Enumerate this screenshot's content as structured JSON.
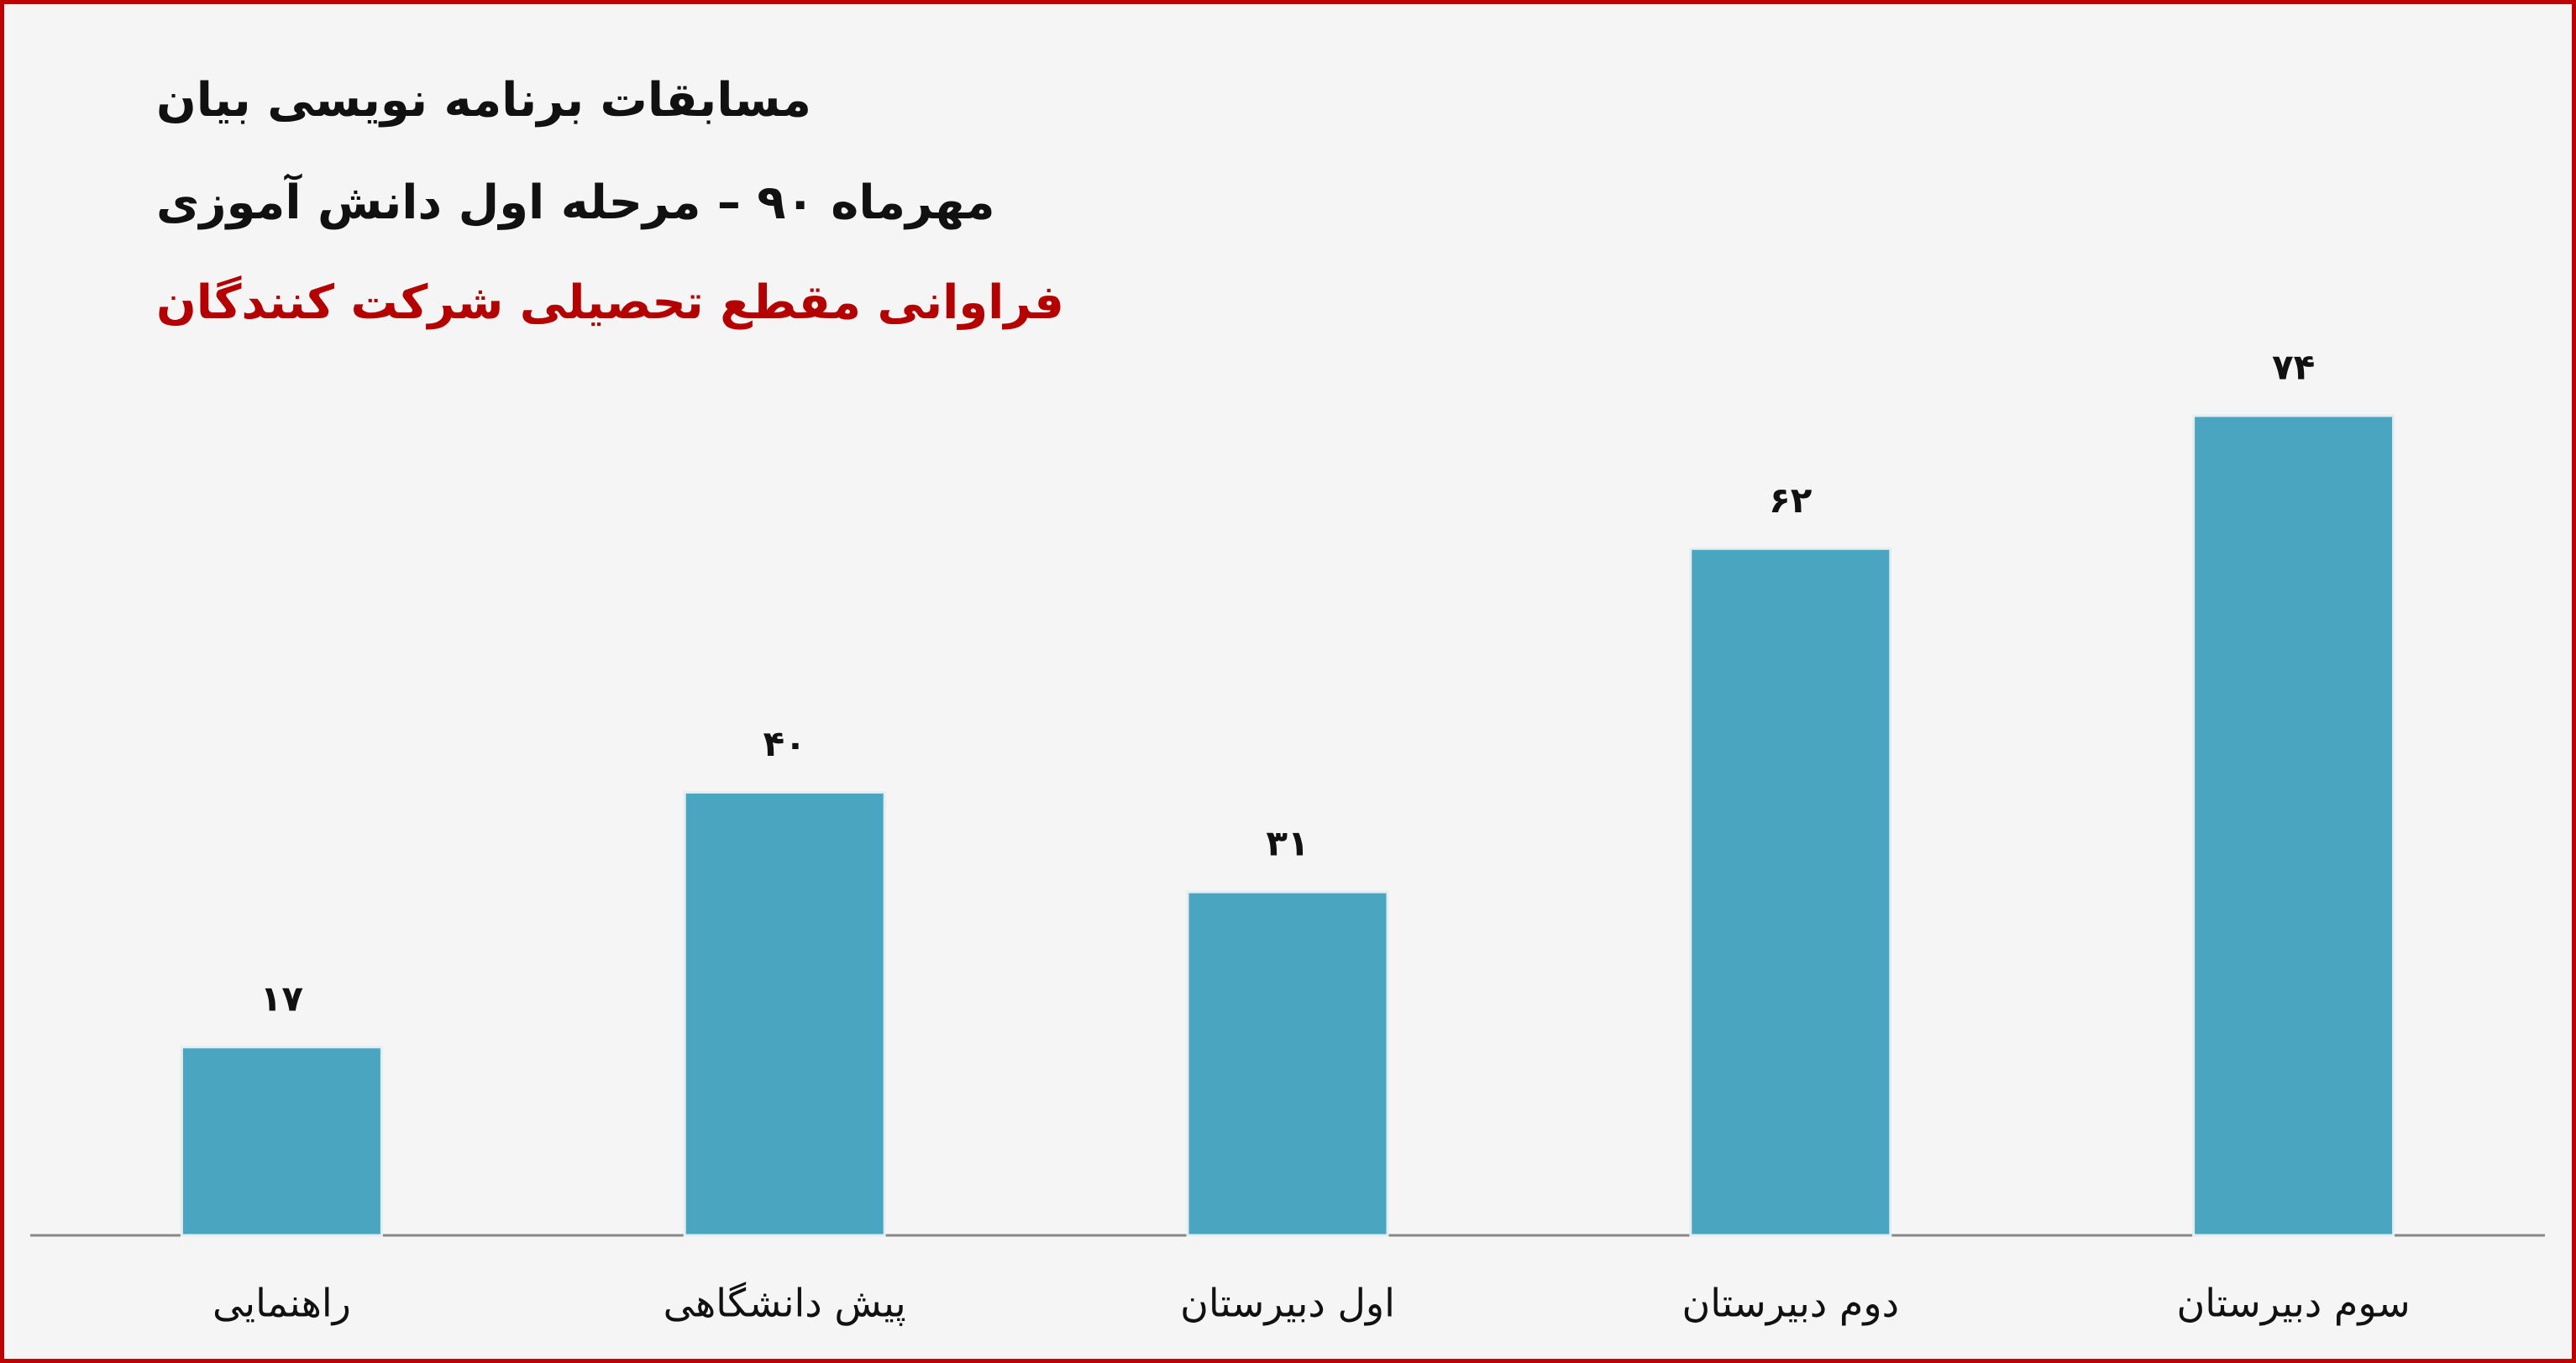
{
  "chart_data": {
    "type": "bar",
    "title": "مسابقات برنامه نویسی بیان",
    "subtitle": "مهرماه ۹۰ – مرحله اول دانش آموزی",
    "caption": "فراوانی مقطع تحصیلی شرکت کنندگان",
    "categories": [
      "راهنمایی",
      "پیش دانشگاهی",
      "اول دبیرستان",
      "دوم دبیرستان",
      "سوم دبیرستان"
    ],
    "values": [
      17,
      40,
      31,
      62,
      74
    ],
    "value_labels": [
      "۱۷",
      "۴۰",
      "۳۱",
      "۶۲",
      "۷۴"
    ],
    "color": "#4aa5c0"
  }
}
